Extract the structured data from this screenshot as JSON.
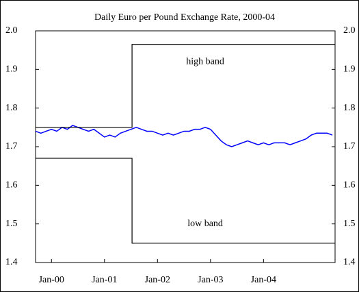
{
  "chart_data": {
    "type": "line",
    "title": "Daily Euro per Pound Exchange Rate, 2000-04",
    "xlim": [
      1999.7,
      2005.35
    ],
    "xticks": [
      {
        "value": 2000,
        "label": "Jan-00"
      },
      {
        "value": 2001,
        "label": "Jan-01"
      },
      {
        "value": 2002,
        "label": "Jan-02"
      },
      {
        "value": 2003,
        "label": "Jan-03"
      },
      {
        "value": 2004,
        "label": "Jan-04"
      }
    ],
    "ylim": [
      1.4,
      2.0
    ],
    "yticks": [
      1.4,
      1.5,
      1.6,
      1.7,
      1.8,
      1.9,
      {
        "value": 2,
        "label": "2.0"
      }
    ],
    "y2lim": [
      1.4,
      2.0
    ],
    "y2ticks": [
      1.4,
      1.5,
      1.6,
      1.7,
      1.8,
      1.9,
      {
        "value": 2,
        "label": "2.0"
      }
    ],
    "series": [
      {
        "color": "#0000ff",
        "x": [
          1999.7,
          1999.8,
          1999.9,
          2000.0,
          2000.1,
          2000.2,
          2000.3,
          2000.4,
          2000.5,
          2000.6,
          2000.7,
          2000.8,
          2000.9,
          2001.0,
          2001.1,
          2001.2,
          2001.3,
          2001.4,
          2001.5,
          2001.6,
          2001.7,
          2001.8,
          2001.9,
          2002.0,
          2002.1,
          2002.2,
          2002.3,
          2002.4,
          2002.5,
          2002.6,
          2002.7,
          2002.8,
          2002.9,
          2003.0,
          2003.1,
          2003.2,
          2003.3,
          2003.4,
          2003.5,
          2003.6,
          2003.7,
          2003.8,
          2003.9,
          2004.0,
          2004.1,
          2004.2,
          2004.3,
          2004.4,
          2004.5,
          2004.6,
          2004.7,
          2004.8,
          2004.9,
          2005.0,
          2005.1,
          2005.2,
          2005.3
        ],
        "values": [
          1.74,
          1.735,
          1.74,
          1.745,
          1.74,
          1.75,
          1.745,
          1.755,
          1.75,
          1.745,
          1.74,
          1.745,
          1.735,
          1.725,
          1.73,
          1.725,
          1.735,
          1.74,
          1.745,
          1.75,
          1.745,
          1.74,
          1.74,
          1.735,
          1.73,
          1.735,
          1.73,
          1.735,
          1.74,
          1.74,
          1.745,
          1.745,
          1.75,
          1.745,
          1.73,
          1.715,
          1.705,
          1.7,
          1.705,
          1.71,
          1.715,
          1.71,
          1.705,
          1.71,
          1.705,
          1.71,
          1.71,
          1.71,
          1.705,
          1.71,
          1.715,
          1.72,
          1.73,
          1.735,
          1.735,
          1.735,
          1.73
        ]
      },
      {
        "color": "#000000",
        "x": [
          1999.7,
          2001.52,
          2001.52,
          2005.35
        ],
        "values": [
          1.75,
          1.75,
          1.965,
          1.965
        ]
      },
      {
        "color": "#000000",
        "x": [
          1999.7,
          2001.52,
          2001.52,
          2005.35
        ],
        "values": [
          1.67,
          1.67,
          1.45,
          1.45
        ]
      }
    ],
    "annotations": [
      {
        "text": "high band",
        "x": 2002.9,
        "y": 1.92
      },
      {
        "text": "low band",
        "x": 2002.9,
        "y": 1.5
      }
    ]
  }
}
